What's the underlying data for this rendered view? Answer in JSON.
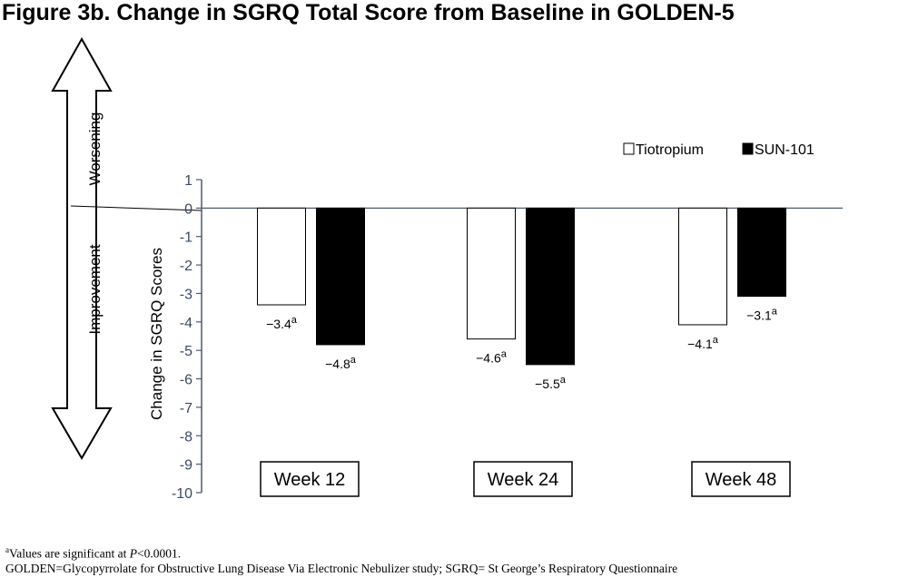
{
  "title": "Figure 3b. Change in SGRQ Total Score from Baseline in GOLDEN-5",
  "arrow_labels": {
    "up": "Worsening",
    "down": "Improvement"
  },
  "footnotes": {
    "sig_marker": "a",
    "sig_prefix": "Values are significant at ",
    "sig_p": "P",
    "sig_suffix": "<0.0001.",
    "abbrev": "GOLDEN=Glycopyrrolate for Obstructive Lung Disease Via Electronic Nebulizer study; SGRQ= St George’s Respiratory Questionnaire"
  },
  "colors": {
    "tiotropium": "#ffffff",
    "sun101": "#000000",
    "axis": "#4a5a70",
    "tick_text": "#3c4a60"
  },
  "chart_data": {
    "type": "bar",
    "categories": [
      "Week 12",
      "Week 24",
      "Week 48"
    ],
    "series": [
      {
        "name": "Tiotropium",
        "values": [
          -3.4,
          -4.6,
          -4.1
        ],
        "labels": [
          "−3.4",
          "−4.6",
          "−4.1"
        ]
      },
      {
        "name": "SUN-101",
        "values": [
          -4.8,
          -5.5,
          -3.1
        ],
        "labels": [
          "−4.8",
          "−5.5",
          "−3.1"
        ]
      }
    ],
    "label_superscript": "a",
    "ylabel": "Change in SGRQ Scores",
    "ylim": [
      -10,
      1
    ],
    "yticks": [
      1,
      0,
      -1,
      -2,
      -3,
      -4,
      -5,
      -6,
      -7,
      -8,
      -9,
      -10
    ],
    "legend_position": "top-right",
    "grid": false
  }
}
